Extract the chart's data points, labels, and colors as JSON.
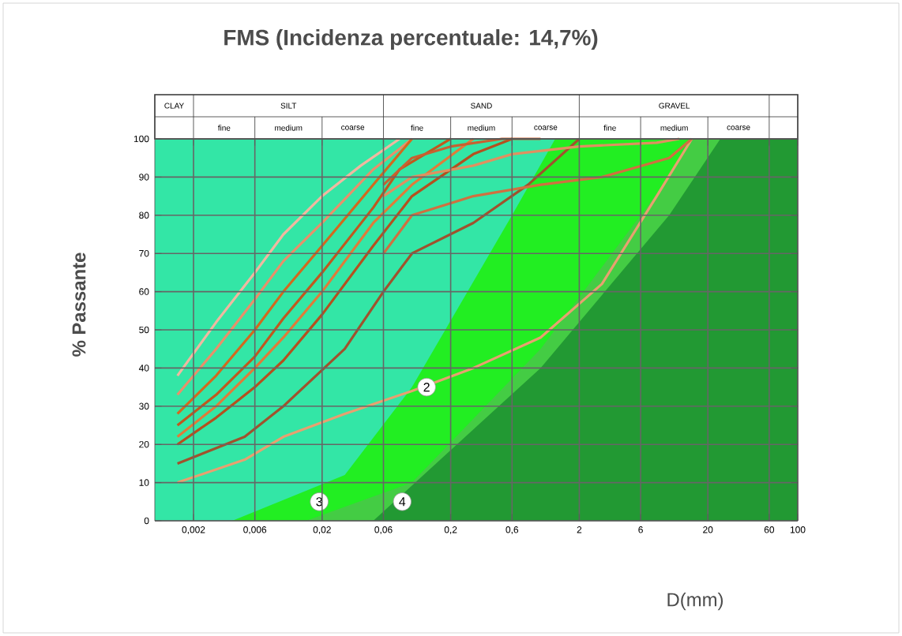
{
  "chart_data": {
    "type": "line",
    "title": "FMS (Incidenza percentuale: 14,7%)",
    "xlabel": "D(mm)",
    "ylabel": "% Passante",
    "log": "x",
    "grid": true,
    "xlim": [
      0.001,
      100
    ],
    "ylim": [
      0,
      100
    ],
    "xticks": [
      {
        "value": 0.002,
        "label": "0,002"
      },
      {
        "value": 0.006,
        "label": "0,006"
      },
      {
        "value": 0.02,
        "label": "0,02"
      },
      {
        "value": 0.06,
        "label": "0,06"
      },
      {
        "value": 0.2,
        "label": "0,2"
      },
      {
        "value": 0.6,
        "label": "0,6"
      },
      2,
      6,
      20,
      60,
      100
    ],
    "yticks": [
      0,
      10,
      20,
      30,
      40,
      50,
      60,
      70,
      80,
      90,
      100
    ],
    "annotations": [
      "CLAY",
      "SILT",
      "SAND",
      "GRAVEL",
      "fine",
      "medium",
      "coarse",
      "fine",
      "medium",
      "coarse",
      "fine",
      "medium",
      "coarse",
      {
        "text": "2",
        "x": 0.13,
        "y": 35
      },
      {
        "text": "3",
        "x": 0.019,
        "y": 5
      },
      {
        "text": "4",
        "x": 0.084,
        "y": 5
      }
    ],
    "series": [
      {
        "type": "area",
        "color": "#33e6a6",
        "x": [
          0.001,
          1.3
        ],
        "values": [
          100,
          100
        ]
      },
      {
        "type": "area",
        "color": "#22ee22",
        "x": [
          0.004,
          0.03,
          0.1,
          0.6,
          1.3,
          15
        ],
        "values": [
          0,
          12,
          35,
          80,
          100,
          100
        ]
      },
      {
        "type": "area",
        "color": "#44cc44",
        "x": [
          0.015,
          0.1,
          1,
          10,
          15,
          25
        ],
        "values": [
          0,
          10,
          45,
          90,
          100,
          100
        ]
      },
      {
        "type": "area",
        "color": "#229933",
        "x": [
          0.05,
          1,
          10,
          25,
          100
        ],
        "values": [
          0,
          40,
          80,
          100,
          100
        ]
      },
      {
        "color": "#f0b8a0",
        "x": [
          0.0015,
          0.003,
          0.006,
          0.01,
          0.02,
          0.04,
          0.08
        ],
        "values": [
          38,
          52,
          65,
          75,
          85,
          93,
          100
        ]
      },
      {
        "color": "#e8906a",
        "x": [
          0.0015,
          0.003,
          0.006,
          0.01,
          0.02,
          0.05,
          0.1
        ],
        "values": [
          33,
          45,
          58,
          68,
          78,
          92,
          100
        ]
      },
      {
        "color": "#d2691e",
        "x": [
          0.0015,
          0.003,
          0.006,
          0.01,
          0.02,
          0.05,
          0.1
        ],
        "values": [
          28,
          38,
          50,
          60,
          72,
          88,
          100
        ]
      },
      {
        "color": "#c0581e",
        "x": [
          0.0015,
          0.003,
          0.006,
          0.01,
          0.02,
          0.05,
          0.08,
          0.2
        ],
        "values": [
          25,
          33,
          43,
          53,
          65,
          82,
          92,
          100
        ]
      },
      {
        "color": "#e07b39",
        "x": [
          0.0015,
          0.003,
          0.006,
          0.01,
          0.02,
          0.05,
          0.1,
          0.3
        ],
        "values": [
          22,
          30,
          40,
          48,
          60,
          78,
          88,
          100
        ]
      },
      {
        "color": "#b5501e",
        "x": [
          0.0015,
          0.003,
          0.006,
          0.01,
          0.02,
          0.05,
          0.1,
          0.3,
          0.6
        ],
        "values": [
          20,
          27,
          35,
          42,
          54,
          72,
          85,
          96,
          100
        ]
      },
      {
        "color": "#a0522d",
        "x": [
          0.0015,
          0.005,
          0.01,
          0.03,
          0.06,
          0.1,
          0.3,
          0.8,
          2
        ],
        "values": [
          15,
          22,
          30,
          45,
          60,
          70,
          78,
          88,
          100
        ]
      },
      {
        "color": "#e8a070",
        "x": [
          0.0015,
          0.005,
          0.01,
          0.03,
          0.1,
          0.3,
          1,
          3,
          8,
          15
        ],
        "values": [
          10,
          16,
          22,
          28,
          34,
          40,
          48,
          62,
          85,
          100
        ]
      },
      {
        "color": "#d07040",
        "x": [
          0.06,
          0.1,
          0.3,
          1,
          3,
          10,
          15
        ],
        "values": [
          70,
          80,
          85,
          88,
          90,
          95,
          100
        ]
      },
      {
        "color": "#e09060",
        "x": [
          0.06,
          0.1,
          0.3,
          0.6,
          2,
          8,
          12
        ],
        "values": [
          85,
          90,
          93,
          96,
          98,
          99,
          100
        ]
      },
      {
        "color": "#c86030",
        "x": [
          0.06,
          0.1,
          0.2,
          0.5,
          1
        ],
        "values": [
          88,
          95,
          98,
          100,
          100
        ]
      }
    ]
  }
}
